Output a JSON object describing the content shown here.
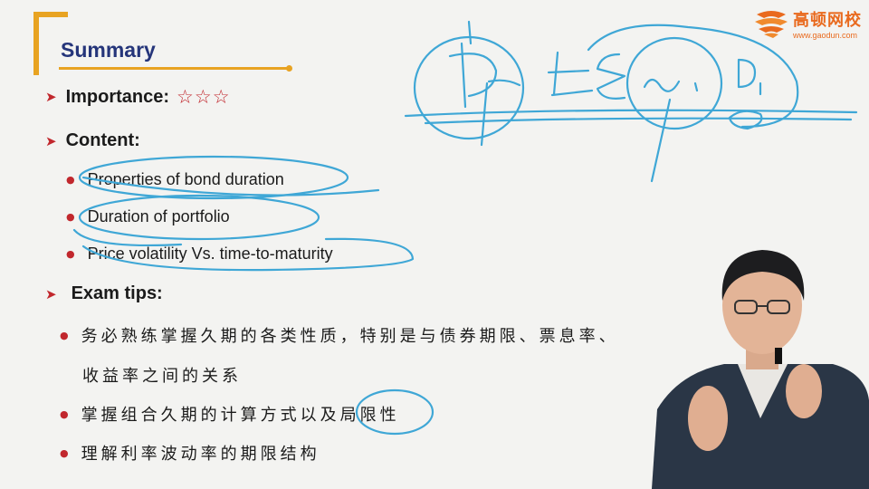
{
  "slide": {
    "title": "Summary",
    "importance_label": "Importance:",
    "importance_stars": "☆☆☆",
    "content_label": "Content:",
    "content_items": [
      "Properties of bond duration",
      "Duration of portfolio",
      "Price volatility Vs. time-to-maturity"
    ],
    "exam_tips_label": "Exam tips:",
    "exam_tips": [
      "务必熟练掌握久期的各类性质，特别是与债券期限、票息率、",
      "收益率之间的关系",
      "掌握组合久期的计算方式以及局限性",
      "理解利率波动率的期限结构"
    ]
  },
  "logo": {
    "name": "高顿网校",
    "url": "www.gaodun.com"
  },
  "colors": {
    "accent": "#e8a322",
    "title": "#25357a",
    "bullet": "#c1272d",
    "annotation_ink": "#3fa7d6",
    "logo": "#e96a1e"
  },
  "icons": [
    "arrow-bullet-icon",
    "star-icon",
    "dot-bullet-icon",
    "gaodun-logo-icon"
  ]
}
